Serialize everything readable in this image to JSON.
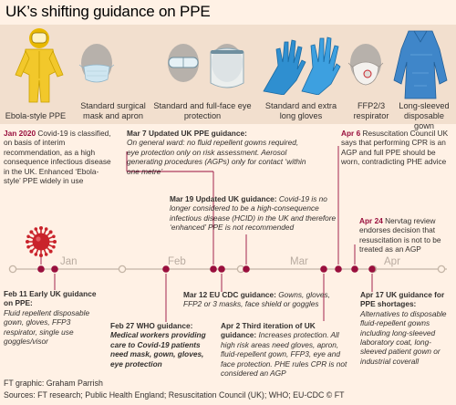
{
  "title": "UK’s shifting guidance on PPE",
  "ppe_items": [
    {
      "label": "Ebola-style PPE",
      "icon": "hazmat-suit-icon"
    },
    {
      "label": "Standard surgical mask and apron",
      "icon": "surgical-mask-icon"
    },
    {
      "label": "Standard and full-face eye protection",
      "icon": "face-shield-icon"
    },
    {
      "label": "Standard and extra long gloves",
      "icon": "gloves-icon"
    },
    {
      "label": "FFP2/3 respirator",
      "icon": "respirator-icon"
    },
    {
      "label": "Long-sleeved disposable gown",
      "icon": "gown-icon"
    }
  ],
  "months": [
    "Jan",
    "Feb",
    "Mar",
    "Apr"
  ],
  "events": {
    "jan20": {
      "date": "Jan 2020",
      "text": " Covid-19 is classified, on basis of interim recommendation, as a high consequence infectious disease in the UK. Enhanced ‘Ebola-style’ PPE widely in use"
    },
    "feb11": {
      "head": "Feb 11 Early UK guidance on PPE:",
      "body": "Fluid repellent disposable gown, gloves, FFP3 respirator, single use goggles/visor"
    },
    "feb27": {
      "head": "Feb 27 WHO guidance:",
      "body": "Medical workers providing care to Covid-19 patients need mask, gown, gloves, eye protection"
    },
    "mar7": {
      "head": "Mar 7 Updated UK PPE guidance:",
      "body": "On general ward: no fluid repellent gowns required, eye protection only on risk assessment. Aerosol generating procedures (AGPs) only for contact ‘within one metre’"
    },
    "mar12": {
      "head": "Mar 12 EU CDC guidance:",
      "body": " Gowns, gloves, FFP2 or 3 masks, face shield or goggles"
    },
    "mar19": {
      "head": "Mar 19 Updated UK guidance:",
      "body": " Covid-19 is no longer considered to be a high-consequence infectious disease (HCID) in the UK and therefore ‘enhanced’ PPE is not recommended"
    },
    "apr2": {
      "head": "Apr 2 Third iteration of UK guidance:",
      "body": " Increases protection. All high risk areas need gloves, apron, fluid-repellent gown, FFP3, eye and face protection. PHE rules CPR is not considered an AGP"
    },
    "apr6": {
      "date": "Apr 6",
      "text": " Resuscitation Council UK says that performing CPR is an AGP and full PPE should be worn, contradicting PHE advice"
    },
    "apr17": {
      "head": "Apr 17 UK guidance for PPE shortages:",
      "body": "Alternatives to disposable fluid-repellent gowns including long-sleeved laboratory coat, long-sleeved patient gown or industrial coverall"
    },
    "apr24": {
      "date": "Apr 24",
      "text": " Nervtag review endorses decision that resuscitation is not to be treated as an AGP"
    }
  },
  "footer": {
    "credit": "FT graphic: Graham Parrish",
    "sources": "Sources: FT research; Public Health England; Resuscitation Council (UK); WHO; EU-CDC  © FT"
  },
  "colors": {
    "background": "#fff1e5",
    "strip": "#f2dfce",
    "accent": "#990f3d",
    "timeline": "#c4b5a6",
    "suit": "#f2c82b",
    "virus": "#c9232b",
    "glove": "#2f8fd0",
    "gown": "#3f86c9"
  }
}
